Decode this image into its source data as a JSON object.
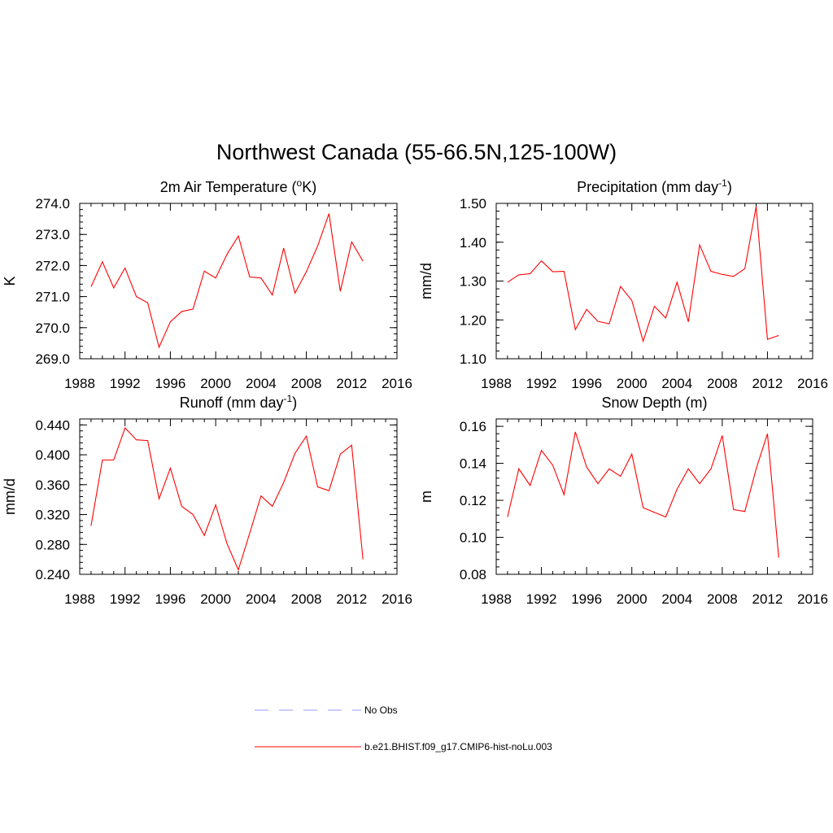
{
  "figure": {
    "title": "Northwest Canada (55-66.5N,125-100W)"
  },
  "legend": {
    "items": [
      {
        "label": "No Obs",
        "color": "#9999ff",
        "dashed": true
      },
      {
        "label": "b.e21.BHIST.f09_g17.CMIP6-hist-noLu.003",
        "color": "#ff0000",
        "dashed": false
      }
    ]
  },
  "chart_data": [
    {
      "type": "line",
      "title_main": "2m Air Temperature (",
      "title_sup": "o",
      "title_rest": "K)",
      "title_end": "",
      "ylabel": "K",
      "xlim": [
        1988,
        2016
      ],
      "ylim": [
        269.0,
        274.0
      ],
      "xticks": [
        1988,
        1992,
        1996,
        2000,
        2004,
        2008,
        2012,
        2016
      ],
      "xtick_labels": [
        "1988",
        "1992",
        "1996",
        "2000",
        "2004",
        "2008",
        "2012",
        "2016"
      ],
      "yticks": [
        269.0,
        270.0,
        271.0,
        272.0,
        273.0,
        274.0
      ],
      "ytick_labels": [
        "269.0",
        "270.0",
        "271.0",
        "272.0",
        "273.0",
        "274.0"
      ],
      "y_minor_step": 0.2,
      "color": "#ff0000",
      "series": [
        {
          "name": "b.e21.BHIST.f09_g17.CMIP6-hist-noLu.003",
          "x": [
            1989,
            1990,
            1991,
            1992,
            1993,
            1994,
            1995,
            1996,
            1997,
            1998,
            1999,
            2000,
            2001,
            2002,
            2003,
            2004,
            2005,
            2006,
            2007,
            2008,
            2009,
            2010,
            2011,
            2012,
            2013
          ],
          "values": [
            271.32,
            272.12,
            271.28,
            271.92,
            271.0,
            270.8,
            269.37,
            270.19,
            270.52,
            270.6,
            271.82,
            271.6,
            272.36,
            272.95,
            271.63,
            271.6,
            271.05,
            272.56,
            271.11,
            271.8,
            272.63,
            273.67,
            271.17,
            272.76,
            272.14
          ]
        }
      ]
    },
    {
      "type": "line",
      "title_main": "Precipitation (mm day",
      "title_sup": "-1",
      "title_rest": ")",
      "title_end": "",
      "ylabel": "mm/d",
      "xlim": [
        1988,
        2016
      ],
      "ylim": [
        1.1,
        1.5
      ],
      "xticks": [
        1988,
        1992,
        1996,
        2000,
        2004,
        2008,
        2012,
        2016
      ],
      "xtick_labels": [
        "1988",
        "1992",
        "1996",
        "2000",
        "2004",
        "2008",
        "2012",
        "2016"
      ],
      "yticks": [
        1.1,
        1.2,
        1.3,
        1.4,
        1.5
      ],
      "ytick_labels": [
        "1.10",
        "1.20",
        "1.30",
        "1.40",
        "1.50"
      ],
      "y_minor_step": 0.02,
      "color": "#ff0000",
      "series": [
        {
          "name": "b.e21.BHIST.f09_g17.CMIP6-hist-noLu.003",
          "x": [
            1989,
            1990,
            1991,
            1992,
            1993,
            1994,
            1995,
            1996,
            1997,
            1998,
            1999,
            2000,
            2001,
            2002,
            2003,
            2004,
            2005,
            2006,
            2007,
            2008,
            2009,
            2010,
            2011,
            2012,
            2013
          ],
          "values": [
            1.297,
            1.316,
            1.319,
            1.352,
            1.324,
            1.325,
            1.175,
            1.227,
            1.196,
            1.19,
            1.286,
            1.25,
            1.145,
            1.235,
            1.205,
            1.297,
            1.195,
            1.393,
            1.325,
            1.317,
            1.312,
            1.332,
            1.492,
            1.15,
            1.16
          ]
        }
      ]
    },
    {
      "type": "line",
      "title_main": "Runoff (mm day",
      "title_sup": "-1",
      "title_rest": ")",
      "title_end": "",
      "ylabel": "mm/d",
      "xlim": [
        1988,
        2016
      ],
      "ylim": [
        0.24,
        0.448
      ],
      "xticks": [
        1988,
        1992,
        1996,
        2000,
        2004,
        2008,
        2012,
        2016
      ],
      "xtick_labels": [
        "1988",
        "1992",
        "1996",
        "2000",
        "2004",
        "2008",
        "2012",
        "2016"
      ],
      "yticks": [
        0.24,
        0.28,
        0.32,
        0.36,
        0.4,
        0.44
      ],
      "ytick_labels": [
        "0.240",
        "0.280",
        "0.320",
        "0.360",
        "0.400",
        "0.440"
      ],
      "y_minor_step": 0.008,
      "color": "#ff0000",
      "series": [
        {
          "name": "b.e21.BHIST.f09_g17.CMIP6-hist-noLu.003",
          "x": [
            1989,
            1990,
            1991,
            1992,
            1993,
            1994,
            1995,
            1996,
            1997,
            1998,
            1999,
            2000,
            2001,
            2002,
            2003,
            2004,
            2005,
            2006,
            2007,
            2008,
            2009,
            2010,
            2011,
            2012,
            2013
          ],
          "values": [
            0.305,
            0.393,
            0.393,
            0.436,
            0.42,
            0.419,
            0.341,
            0.382,
            0.331,
            0.32,
            0.292,
            0.333,
            0.281,
            0.246,
            0.295,
            0.345,
            0.331,
            0.363,
            0.402,
            0.425,
            0.357,
            0.352,
            0.401,
            0.413,
            0.26
          ]
        }
      ]
    },
    {
      "type": "line",
      "title_main": "Snow Depth (m)",
      "title_sup": "",
      "title_rest": "",
      "title_end": "",
      "ylabel": "m",
      "xlim": [
        1988,
        2016
      ],
      "ylim": [
        0.08,
        0.164
      ],
      "xticks": [
        1988,
        1992,
        1996,
        2000,
        2004,
        2008,
        2012,
        2016
      ],
      "xtick_labels": [
        "1988",
        "1992",
        "1996",
        "2000",
        "2004",
        "2008",
        "2012",
        "2016"
      ],
      "yticks": [
        0.08,
        0.1,
        0.12,
        0.14,
        0.16
      ],
      "ytick_labels": [
        "0.08",
        "0.10",
        "0.12",
        "0.14",
        "0.16"
      ],
      "y_minor_step": 0.004,
      "color": "#ff0000",
      "series": [
        {
          "name": "b.e21.BHIST.f09_g17.CMIP6-hist-noLu.003",
          "x": [
            1989,
            1990,
            1991,
            1992,
            1993,
            1994,
            1995,
            1996,
            1997,
            1998,
            1999,
            2000,
            2001,
            2002,
            2003,
            2004,
            2005,
            2006,
            2007,
            2008,
            2009,
            2010,
            2011,
            2012,
            2013
          ],
          "values": [
            0.111,
            0.137,
            0.128,
            0.147,
            0.139,
            0.123,
            0.157,
            0.138,
            0.129,
            0.137,
            0.133,
            0.145,
            0.116,
            0.1135,
            0.111,
            0.126,
            0.137,
            0.129,
            0.137,
            0.155,
            0.115,
            0.114,
            0.137,
            0.156,
            0.089
          ]
        }
      ]
    }
  ]
}
